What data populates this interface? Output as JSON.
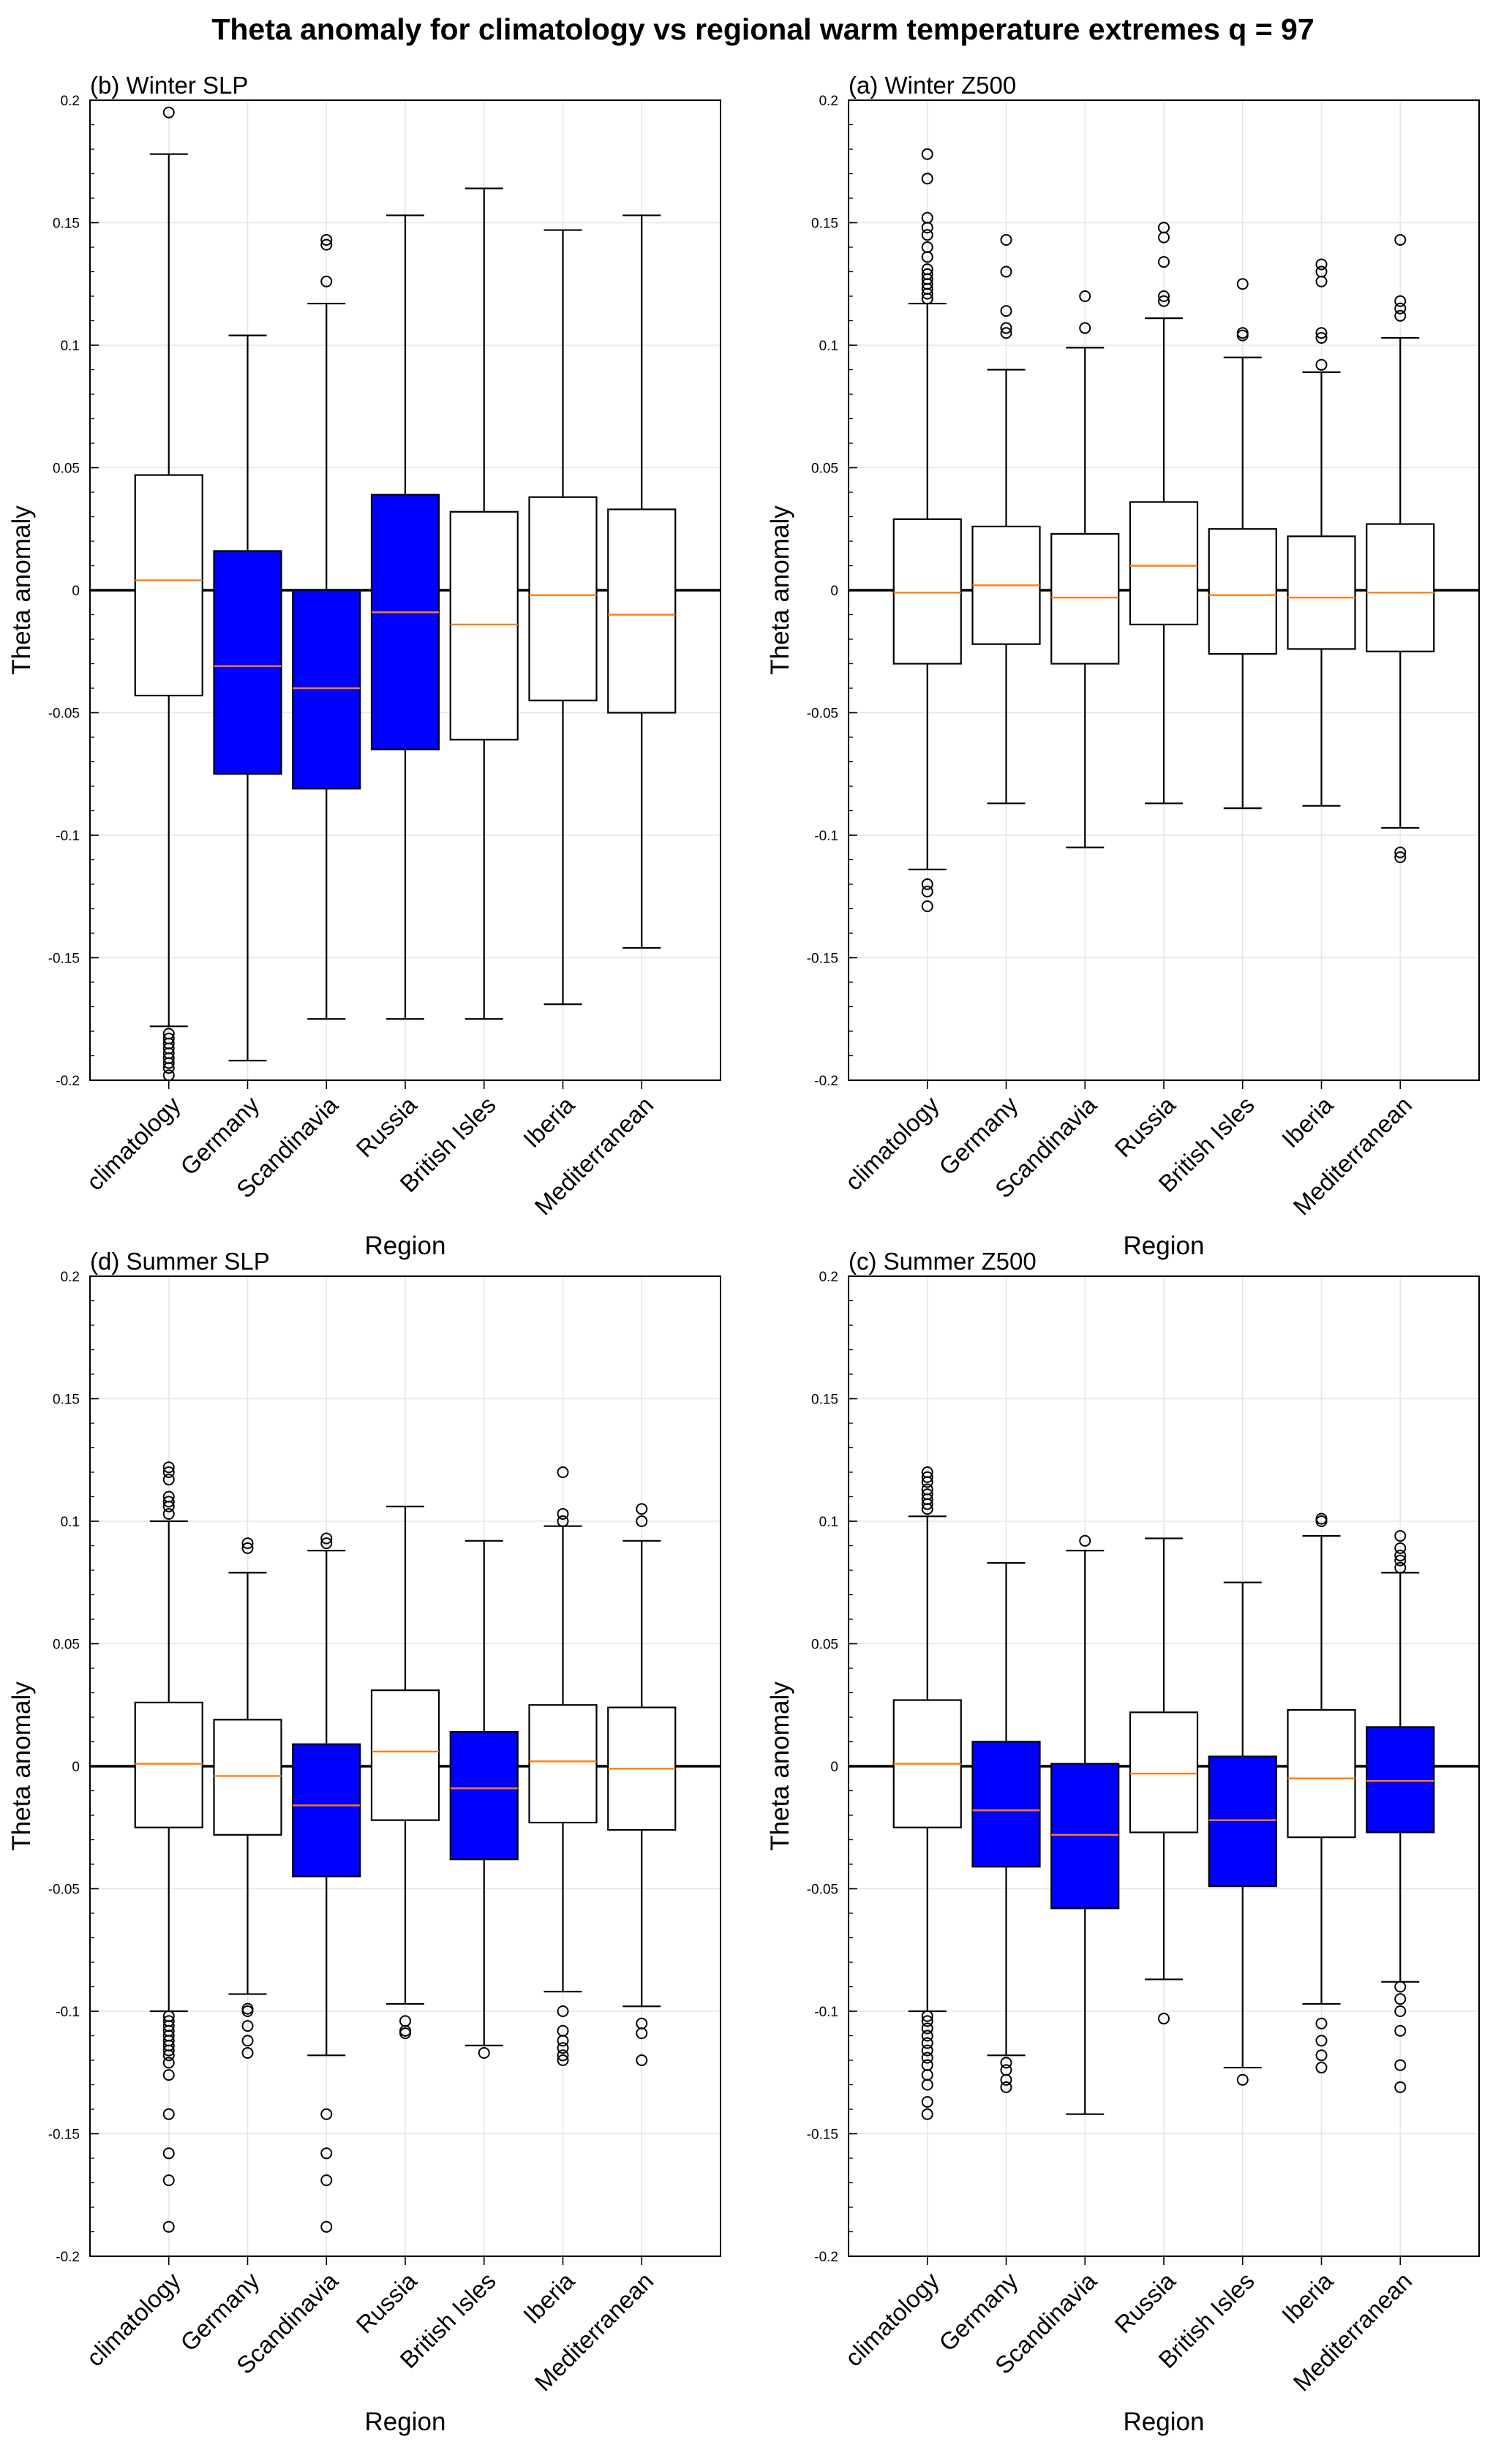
{
  "title": "Theta anomaly for climatology vs regional warm temperature extremes q = 97",
  "colors": {
    "highlight": "#0000ff",
    "median": "#ff7f0e",
    "box": "#000000",
    "grid": "#e6e6e6"
  },
  "chart_data": [
    {
      "type": "boxplot",
      "title": "(b) Winter SLP",
      "xlabel": "Region",
      "ylabel": "Theta anomaly",
      "ylim": [
        -0.2,
        0.2
      ],
      "yticks": [
        0.2,
        0.15,
        0.1,
        0.05,
        0,
        -0.05,
        -0.1,
        -0.15,
        -0.2
      ],
      "ytick_labels": [
        "0.2",
        "0.15",
        "0.1",
        "0.05",
        "0",
        "-0.05",
        "-0.1",
        "-0.15",
        "-0.2"
      ],
      "categories": [
        "climatology",
        "Germany",
        "Scandinavia",
        "Russia",
        "British Isles",
        "Iberia",
        "Mediterranean"
      ],
      "boxes": [
        {
          "q1": -0.043,
          "median": 0.004,
          "q3": 0.047,
          "whislo": -0.178,
          "whishi": 0.178,
          "highlight": false,
          "fliers": [
            0.195,
            -0.181,
            -0.183,
            -0.185,
            -0.187,
            -0.189,
            -0.191,
            -0.193,
            -0.195,
            -0.198
          ]
        },
        {
          "q1": -0.075,
          "median": -0.031,
          "q3": 0.016,
          "whislo": -0.192,
          "whishi": 0.104,
          "highlight": true,
          "fliers": []
        },
        {
          "q1": -0.081,
          "median": -0.04,
          "q3": 0.0,
          "whislo": -0.175,
          "whishi": 0.117,
          "highlight": true,
          "fliers": [
            0.143,
            0.141,
            0.126
          ]
        },
        {
          "q1": -0.065,
          "median": -0.009,
          "q3": 0.039,
          "whislo": -0.175,
          "whishi": 0.153,
          "highlight": true,
          "fliers": []
        },
        {
          "q1": -0.061,
          "median": -0.014,
          "q3": 0.032,
          "whislo": -0.175,
          "whishi": 0.164,
          "highlight": false,
          "fliers": []
        },
        {
          "q1": -0.045,
          "median": -0.002,
          "q3": 0.038,
          "whislo": -0.169,
          "whishi": 0.147,
          "highlight": false,
          "fliers": []
        },
        {
          "q1": -0.05,
          "median": -0.01,
          "q3": 0.033,
          "whislo": -0.146,
          "whishi": 0.153,
          "highlight": false,
          "fliers": []
        }
      ]
    },
    {
      "type": "boxplot",
      "title": "(a) Winter Z500",
      "xlabel": "Region",
      "ylabel": "Theta anomaly",
      "ylim": [
        -0.2,
        0.2
      ],
      "yticks": [
        0.2,
        0.15,
        0.1,
        0.05,
        0,
        -0.05,
        -0.1,
        -0.15,
        -0.2
      ],
      "ytick_labels": [
        "0.2",
        "0.15",
        "0.1",
        "0.05",
        "0",
        "-0.05",
        "-0.1",
        "-0.15",
        "-0.2"
      ],
      "categories": [
        "climatology",
        "Germany",
        "Scandinavia",
        "Russia",
        "British Isles",
        "Iberia",
        "Mediterranean"
      ],
      "boxes": [
        {
          "q1": -0.03,
          "median": -0.001,
          "q3": 0.029,
          "whislo": -0.114,
          "whishi": 0.117,
          "highlight": false,
          "fliers": [
            0.178,
            0.168,
            0.152,
            0.148,
            0.145,
            0.14,
            0.136,
            0.131,
            0.129,
            0.127,
            0.125,
            0.123,
            0.121,
            0.119,
            -0.12,
            -0.123,
            -0.129
          ]
        },
        {
          "q1": -0.022,
          "median": 0.002,
          "q3": 0.026,
          "whislo": -0.087,
          "whishi": 0.09,
          "highlight": false,
          "fliers": [
            0.143,
            0.13,
            0.114,
            0.107,
            0.105
          ]
        },
        {
          "q1": -0.03,
          "median": -0.003,
          "q3": 0.023,
          "whislo": -0.105,
          "whishi": 0.099,
          "highlight": false,
          "fliers": [
            0.12,
            0.107
          ]
        },
        {
          "q1": -0.014,
          "median": 0.01,
          "q3": 0.036,
          "whislo": -0.087,
          "whishi": 0.111,
          "highlight": false,
          "fliers": [
            0.148,
            0.144,
            0.134,
            0.12,
            0.118
          ]
        },
        {
          "q1": -0.026,
          "median": -0.002,
          "q3": 0.025,
          "whislo": -0.089,
          "whishi": 0.095,
          "highlight": false,
          "fliers": [
            0.125,
            0.105,
            0.104
          ]
        },
        {
          "q1": -0.024,
          "median": -0.003,
          "q3": 0.022,
          "whislo": -0.088,
          "whishi": 0.089,
          "highlight": false,
          "fliers": [
            0.133,
            0.13,
            0.126,
            0.105,
            0.103,
            0.092
          ]
        },
        {
          "q1": -0.025,
          "median": -0.001,
          "q3": 0.027,
          "whislo": -0.097,
          "whishi": 0.103,
          "highlight": false,
          "fliers": [
            0.143,
            0.118,
            0.115,
            0.112,
            -0.107,
            -0.109
          ]
        }
      ]
    },
    {
      "type": "boxplot",
      "title": "(d) Summer SLP",
      "xlabel": "Region",
      "ylabel": "Theta anomaly",
      "ylim": [
        -0.2,
        0.2
      ],
      "yticks": [
        0.2,
        0.15,
        0.1,
        0.05,
        0,
        -0.05,
        -0.1,
        -0.15,
        -0.2
      ],
      "ytick_labels": [
        "0.2",
        "0.15",
        "0.1",
        "0.05",
        "0",
        "-0.05",
        "-0.1",
        "-0.15",
        "-0.2"
      ],
      "categories": [
        "climatology",
        "Germany",
        "Scandinavia",
        "Russia",
        "British Isles",
        "Iberia",
        "Mediterranean"
      ],
      "boxes": [
        {
          "q1": -0.025,
          "median": 0.001,
          "q3": 0.026,
          "whislo": -0.1,
          "whishi": 0.1,
          "highlight": false,
          "fliers": [
            0.122,
            0.12,
            0.117,
            0.11,
            0.108,
            0.106,
            0.103,
            -0.102,
            -0.104,
            -0.106,
            -0.108,
            -0.11,
            -0.112,
            -0.114,
            -0.116,
            -0.118,
            -0.121,
            -0.126,
            -0.142,
            -0.158,
            -0.169,
            -0.188
          ]
        },
        {
          "q1": -0.028,
          "median": -0.004,
          "q3": 0.019,
          "whislo": -0.093,
          "whishi": 0.079,
          "highlight": false,
          "fliers": [
            0.091,
            0.089,
            -0.099,
            -0.1,
            -0.106,
            -0.112,
            -0.117
          ]
        },
        {
          "q1": -0.045,
          "median": -0.016,
          "q3": 0.009,
          "whislo": -0.118,
          "whishi": 0.088,
          "highlight": true,
          "fliers": [
            0.093,
            0.091,
            -0.142,
            -0.158,
            -0.169,
            -0.188
          ]
        },
        {
          "q1": -0.022,
          "median": 0.006,
          "q3": 0.031,
          "whislo": -0.097,
          "whishi": 0.106,
          "highlight": false,
          "fliers": [
            -0.104,
            -0.108,
            -0.109
          ]
        },
        {
          "q1": -0.038,
          "median": -0.009,
          "q3": 0.014,
          "whislo": -0.114,
          "whishi": 0.092,
          "highlight": true,
          "fliers": [
            -0.117
          ]
        },
        {
          "q1": -0.023,
          "median": 0.002,
          "q3": 0.025,
          "whislo": -0.092,
          "whishi": 0.098,
          "highlight": false,
          "fliers": [
            0.12,
            0.103,
            0.1,
            -0.1,
            -0.108,
            -0.112,
            -0.115,
            -0.118,
            -0.12
          ]
        },
        {
          "q1": -0.026,
          "median": -0.001,
          "q3": 0.024,
          "whislo": -0.098,
          "whishi": 0.092,
          "highlight": false,
          "fliers": [
            0.105,
            0.1,
            -0.105,
            -0.109,
            -0.12
          ]
        }
      ]
    },
    {
      "type": "boxplot",
      "title": "(c) Summer Z500",
      "xlabel": "Region",
      "ylabel": "Theta anomaly",
      "ylim": [
        -0.2,
        0.2
      ],
      "yticks": [
        0.2,
        0.15,
        0.1,
        0.05,
        0,
        -0.05,
        -0.1,
        -0.15,
        -0.2
      ],
      "ytick_labels": [
        "0.2",
        "0.15",
        "0.1",
        "0.05",
        "0",
        "-0.05",
        "-0.1",
        "-0.15",
        "-0.2"
      ],
      "categories": [
        "climatology",
        "Germany",
        "Scandinavia",
        "Russia",
        "British Isles",
        "Iberia",
        "Mediterranean"
      ],
      "boxes": [
        {
          "q1": -0.025,
          "median": 0.001,
          "q3": 0.027,
          "whislo": -0.1,
          "whishi": 0.102,
          "highlight": false,
          "fliers": [
            0.12,
            0.118,
            0.116,
            0.113,
            0.111,
            0.109,
            0.107,
            0.105,
            -0.102,
            -0.104,
            -0.107,
            -0.11,
            -0.113,
            -0.116,
            -0.119,
            -0.122,
            -0.126,
            -0.13,
            -0.137,
            -0.142
          ]
        },
        {
          "q1": -0.041,
          "median": -0.018,
          "q3": 0.01,
          "whislo": -0.118,
          "whishi": 0.083,
          "highlight": true,
          "fliers": [
            -0.121,
            -0.124,
            -0.128,
            -0.131
          ]
        },
        {
          "q1": -0.058,
          "median": -0.028,
          "q3": 0.001,
          "whislo": -0.142,
          "whishi": 0.088,
          "highlight": true,
          "fliers": [
            0.092
          ]
        },
        {
          "q1": -0.027,
          "median": -0.003,
          "q3": 0.022,
          "whislo": -0.087,
          "whishi": 0.093,
          "highlight": false,
          "fliers": [
            -0.103
          ]
        },
        {
          "q1": -0.049,
          "median": -0.022,
          "q3": 0.004,
          "whislo": -0.123,
          "whishi": 0.075,
          "highlight": true,
          "fliers": [
            -0.128
          ]
        },
        {
          "q1": -0.029,
          "median": -0.005,
          "q3": 0.023,
          "whislo": -0.097,
          "whishi": 0.094,
          "highlight": false,
          "fliers": [
            0.101,
            0.1,
            -0.105,
            -0.112,
            -0.118,
            -0.123
          ]
        },
        {
          "q1": -0.027,
          "median": -0.006,
          "q3": 0.016,
          "whislo": -0.088,
          "whishi": 0.079,
          "highlight": true,
          "fliers": [
            0.094,
            0.089,
            0.086,
            0.084,
            0.081,
            -0.09,
            -0.095,
            -0.1,
            -0.108,
            -0.122,
            -0.131
          ]
        }
      ]
    }
  ]
}
